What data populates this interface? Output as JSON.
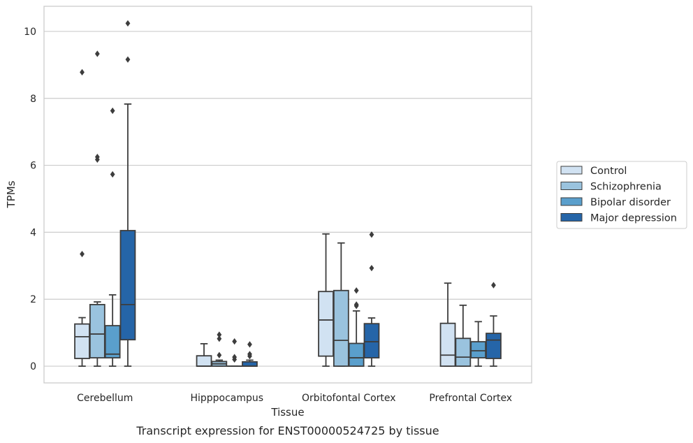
{
  "chart_data": {
    "type": "box",
    "caption": "Transcript expression for ENST00000524725 by tissue",
    "xlabel": "Tissue",
    "ylabel": "TPMs",
    "ylim": [
      -0.5,
      10.75
    ],
    "yticks": [
      0,
      2,
      4,
      6,
      8,
      10
    ],
    "grid": true,
    "legend_position": "right",
    "categories": [
      "Cerebellum",
      "Hipppocampus",
      "Orbitofontal Cortex",
      "Prefrontal Cortex"
    ],
    "series": [
      {
        "name": "Control",
        "color": "#d1e2f2",
        "boxes": [
          {
            "q1": 0.23,
            "median": 0.88,
            "q3": 1.26,
            "whisker_low": 0.0,
            "whisker_high": 1.45,
            "outliers": [
              3.35,
              8.78
            ]
          },
          {
            "q1": 0.0,
            "median": 0.0,
            "q3": 0.31,
            "whisker_low": 0.0,
            "whisker_high": 0.67,
            "outliers": []
          },
          {
            "q1": 0.3,
            "median": 1.38,
            "q3": 2.23,
            "whisker_low": 0.0,
            "whisker_high": 3.95,
            "outliers": []
          },
          {
            "q1": 0.0,
            "median": 0.33,
            "q3": 1.28,
            "whisker_low": 0.0,
            "whisker_high": 2.48,
            "outliers": []
          }
        ]
      },
      {
        "name": "Schizophrenia",
        "color": "#9ac3de",
        "boxes": [
          {
            "q1": 0.25,
            "median": 0.96,
            "q3": 1.84,
            "whisker_low": 0.0,
            "whisker_high": 1.92,
            "outliers": [
              6.17,
              6.25,
              9.33
            ]
          },
          {
            "q1": 0.0,
            "median": 0.07,
            "q3": 0.14,
            "whisker_low": 0.0,
            "whisker_high": 0.18,
            "outliers": [
              0.33,
              0.82,
              0.94
            ]
          },
          {
            "q1": 0.0,
            "median": 0.77,
            "q3": 2.26,
            "whisker_low": 0.0,
            "whisker_high": 3.68,
            "outliers": []
          },
          {
            "q1": 0.0,
            "median": 0.27,
            "q3": 0.83,
            "whisker_low": 0.0,
            "whisker_high": 1.82,
            "outliers": []
          }
        ]
      },
      {
        "name": "Bipolar disorder",
        "color": "#5a9fcc",
        "boxes": [
          {
            "q1": 0.25,
            "median": 0.36,
            "q3": 1.21,
            "whisker_low": 0.0,
            "whisker_high": 2.13,
            "outliers": [
              5.73,
              7.63
            ]
          },
          {
            "q1": 0.0,
            "median": 0.0,
            "q3": 0.0,
            "whisker_low": 0.0,
            "whisker_high": 0.0,
            "outliers": [
              0.2,
              0.27,
              0.74
            ]
          },
          {
            "q1": 0.0,
            "median": 0.25,
            "q3": 0.68,
            "whisker_low": 0.0,
            "whisker_high": 1.65,
            "outliers": [
              1.8,
              1.84,
              2.26
            ]
          },
          {
            "q1": 0.25,
            "median": 0.46,
            "q3": 0.73,
            "whisker_low": 0.0,
            "whisker_high": 1.33,
            "outliers": []
          }
        ]
      },
      {
        "name": "Major depression",
        "color": "#2565a8",
        "boxes": [
          {
            "q1": 0.79,
            "median": 1.84,
            "q3": 4.05,
            "whisker_low": 0.0,
            "whisker_high": 7.83,
            "outliers": [
              9.16,
              10.24
            ]
          },
          {
            "q1": 0.0,
            "median": 0.0,
            "q3": 0.13,
            "whisker_low": 0.0,
            "whisker_high": 0.18,
            "outliers": [
              0.3,
              0.36,
              0.65
            ]
          },
          {
            "q1": 0.25,
            "median": 0.73,
            "q3": 1.27,
            "whisker_low": 0.0,
            "whisker_high": 1.44,
            "outliers": [
              2.93,
              3.93
            ]
          },
          {
            "q1": 0.23,
            "median": 0.78,
            "q3": 0.98,
            "whisker_low": 0.0,
            "whisker_high": 1.5,
            "outliers": [
              2.42
            ]
          }
        ]
      }
    ]
  }
}
